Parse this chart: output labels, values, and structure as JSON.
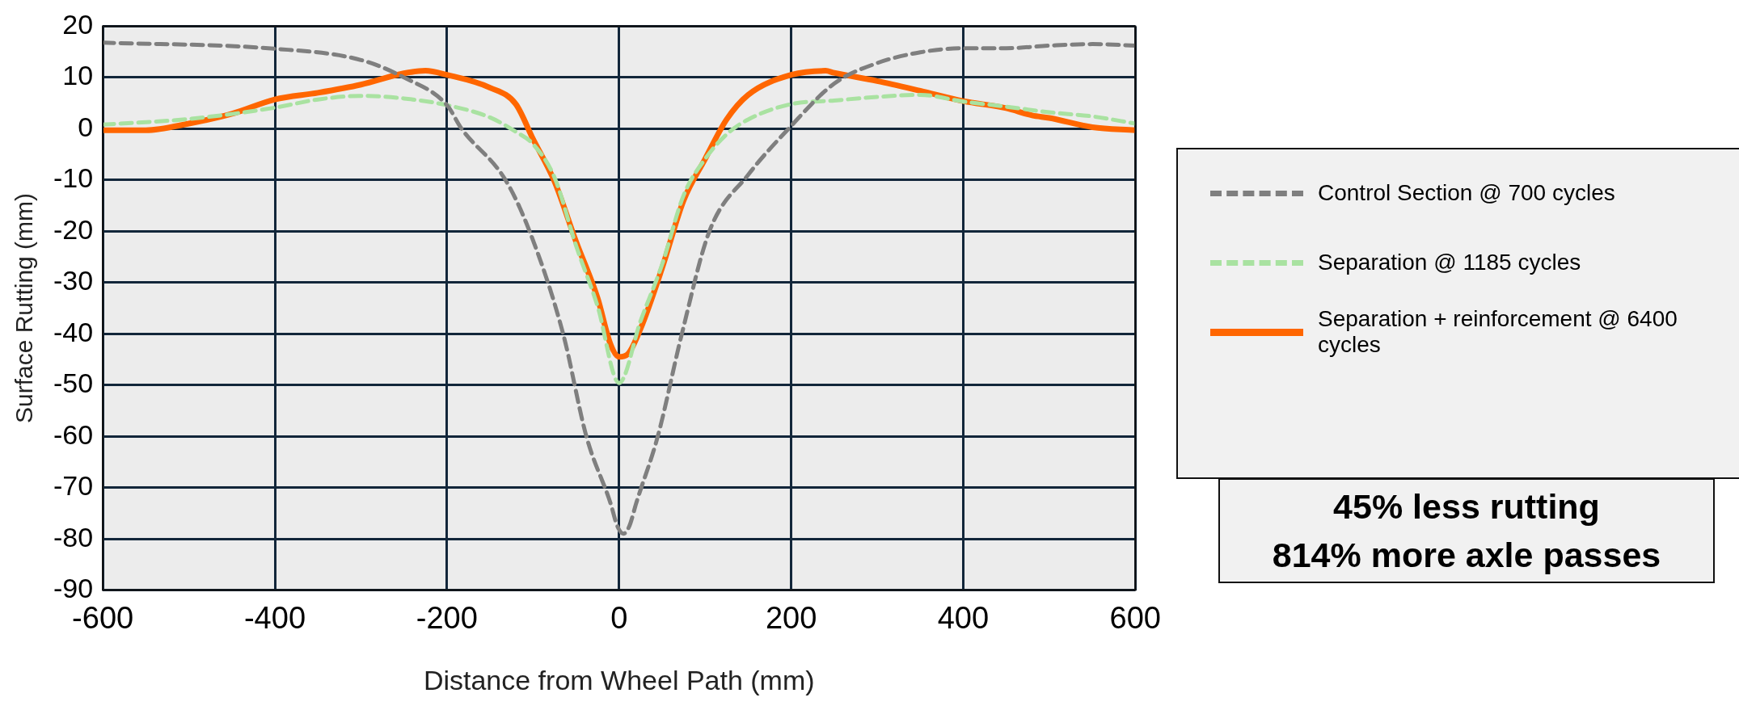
{
  "chart_data": {
    "type": "line",
    "xlabel": "Distance from Wheel Path (mm)",
    "ylabel": "Surface Rutting (mm)",
    "xlim": [
      -600,
      600
    ],
    "xticks": [
      -600,
      -400,
      -200,
      0,
      200,
      400,
      600
    ],
    "ylim": [
      -90,
      20
    ],
    "yticks": [
      -90,
      -80,
      -70,
      -60,
      -50,
      -40,
      -30,
      -20,
      -10,
      0,
      10,
      20
    ],
    "grid": true,
    "legend": "right",
    "marker": "none",
    "series": [
      {
        "name": "Control Section @ 700 cycles",
        "color": "#7f7f7f",
        "line_style": "dashed",
        "x": [
          -600,
          -400,
          -300,
          -250,
          -200,
          -183,
          -132,
          -104,
          -65,
          -38,
          -10,
          -2,
          5,
          12,
          20,
          45,
          73,
          105,
          150,
          197,
          250,
          300,
          350,
          400,
          450,
          500,
          550,
          600
        ],
        "values": [
          16.8,
          15.6,
          13.4,
          10,
          4.6,
          0,
          -10,
          -20,
          -40,
          -60,
          -73,
          -77.5,
          -79,
          -77.5,
          -73,
          -60,
          -40,
          -20,
          -9,
          0,
          8.8,
          12.8,
          14.9,
          15.7,
          15.7,
          16.2,
          16.5,
          16.2
        ]
      },
      {
        "name": "Separation @ 1185 cycles",
        "color": "#a9e2a1",
        "line_style": "dashed",
        "x": [
          -600,
          -500,
          -400,
          -350,
          -300,
          -250,
          -200,
          -150,
          -120,
          -100,
          -75,
          -50,
          -25,
          0,
          25,
          50,
          75,
          100,
          125,
          150,
          200,
          250,
          300,
          350,
          400,
          450,
          500,
          550,
          600
        ],
        "values": [
          0.8,
          1.9,
          4.1,
          5.7,
          6.4,
          5.9,
          4.6,
          2.2,
          -0.6,
          -3,
          -9.5,
          -22.8,
          -34.6,
          -49.6,
          -37.5,
          -26.5,
          -13,
          -5.9,
          -1.1,
          1.8,
          4.8,
          5.5,
          6.2,
          6.6,
          5.3,
          4.3,
          3.2,
          2.4,
          1.0
        ]
      },
      {
        "name": "Separation + reinforcement @ 6400 cycles",
        "color": "#ff6600",
        "line_style": "solid",
        "x": [
          -600,
          -550,
          -500,
          -450,
          -400,
          -350,
          -300,
          -250,
          -225,
          -200,
          -150,
          -120,
          -100,
          -75,
          -50,
          -25,
          -10,
          0,
          10,
          25,
          50,
          75,
          100,
          125,
          150,
          200,
          240,
          250,
          300,
          350,
          400,
          450,
          480,
          500,
          550,
          600
        ],
        "values": [
          -0.3,
          -0.3,
          1,
          2.9,
          5.7,
          7,
          8.6,
          10.8,
          11.3,
          10.5,
          8,
          4.8,
          -2,
          -10.3,
          -22,
          -33,
          -42,
          -44.5,
          -44,
          -39,
          -27.2,
          -14,
          -5.9,
          1.8,
          6.6,
          10.5,
          11.3,
          10.9,
          9.3,
          7.4,
          5.4,
          4,
          2.6,
          2.1,
          0.3,
          -0.3
        ]
      }
    ],
    "annotations": [
      "45% less rutting",
      "814% more axle passes"
    ]
  }
}
